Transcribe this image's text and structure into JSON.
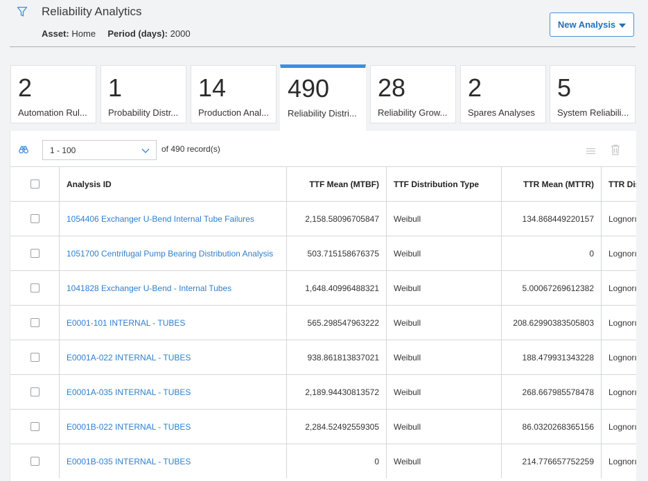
{
  "header": {
    "title": "Reliability Analytics",
    "asset_label": "Asset:",
    "asset_value": "Home",
    "period_label": "Period (days):",
    "period_value": "2000",
    "new_button": "New Analysis",
    "filter_icon": "filter-icon"
  },
  "tiles": [
    {
      "count": "2",
      "label": "Automation Rul..."
    },
    {
      "count": "1",
      "label": "Probability Distr..."
    },
    {
      "count": "14",
      "label": "Production Anal..."
    },
    {
      "count": "490",
      "label": "Reliability Distri...",
      "active": true
    },
    {
      "count": "28",
      "label": "Reliability Grow..."
    },
    {
      "count": "2",
      "label": "Spares Analyses"
    },
    {
      "count": "5",
      "label": "System Reliabili..."
    }
  ],
  "toolbar": {
    "range": "1 - 100",
    "records": "of 490 record(s)",
    "icons": [
      "binoculars-icon",
      "chevron-down-icon",
      "list-view-icon",
      "trash-icon"
    ]
  },
  "table": {
    "columns": [
      "Analysis ID",
      "TTF Mean (MTBF)",
      "TTF Distribution Type",
      "TTR Mean (MTTR)",
      "TTR Dis"
    ],
    "rows": [
      {
        "id": "1054406 Exchanger U-Bend Internal Tube Failures",
        "ttf_mean": "2,158.58096705847",
        "ttf_type": "Weibull",
        "ttr_mean": "134.868449220157",
        "ttr_type": "Lognorı"
      },
      {
        "id": "1051700 Centrifugal Pump Bearing Distribution Analysis",
        "ttf_mean": "503.715158676375",
        "ttf_type": "Weibull",
        "ttr_mean": "0",
        "ttr_type": "Lognorı"
      },
      {
        "id": "1041828 Exchanger U-Bend - Internal Tubes",
        "ttf_mean": "1,648.40996488321",
        "ttf_type": "Weibull",
        "ttr_mean": "5.00067269612382",
        "ttr_type": "Lognorı"
      },
      {
        "id": "E0001-101 INTERNAL - TUBES",
        "ttf_mean": "565.298547963222",
        "ttf_type": "Weibull",
        "ttr_mean": "208.62990383505803",
        "ttr_type": "Lognorı"
      },
      {
        "id": "E0001A-022 INTERNAL - TUBES",
        "ttf_mean": "938.861813837021",
        "ttf_type": "Weibull",
        "ttr_mean": "188.479931343228",
        "ttr_type": "Lognorı"
      },
      {
        "id": "E0001A-035 INTERNAL - TUBES",
        "ttf_mean": "2,189.94430813572",
        "ttf_type": "Weibull",
        "ttr_mean": "268.667985578478",
        "ttr_type": "Lognorı"
      },
      {
        "id": "E0001B-022 INTERNAL - TUBES",
        "ttf_mean": "2,284.52492559305",
        "ttf_type": "Weibull",
        "ttr_mean": "86.0320268365156",
        "ttr_type": "Lognorı"
      },
      {
        "id": "E0001B-035 INTERNAL - TUBES",
        "ttf_mean": "0",
        "ttf_type": "Weibull",
        "ttr_mean": "214.776657752259",
        "ttr_type": "Lognorı"
      }
    ]
  },
  "colors": {
    "accent": "#3d8fde",
    "link": "#2d7fcf",
    "background": "#f2f3f5"
  }
}
